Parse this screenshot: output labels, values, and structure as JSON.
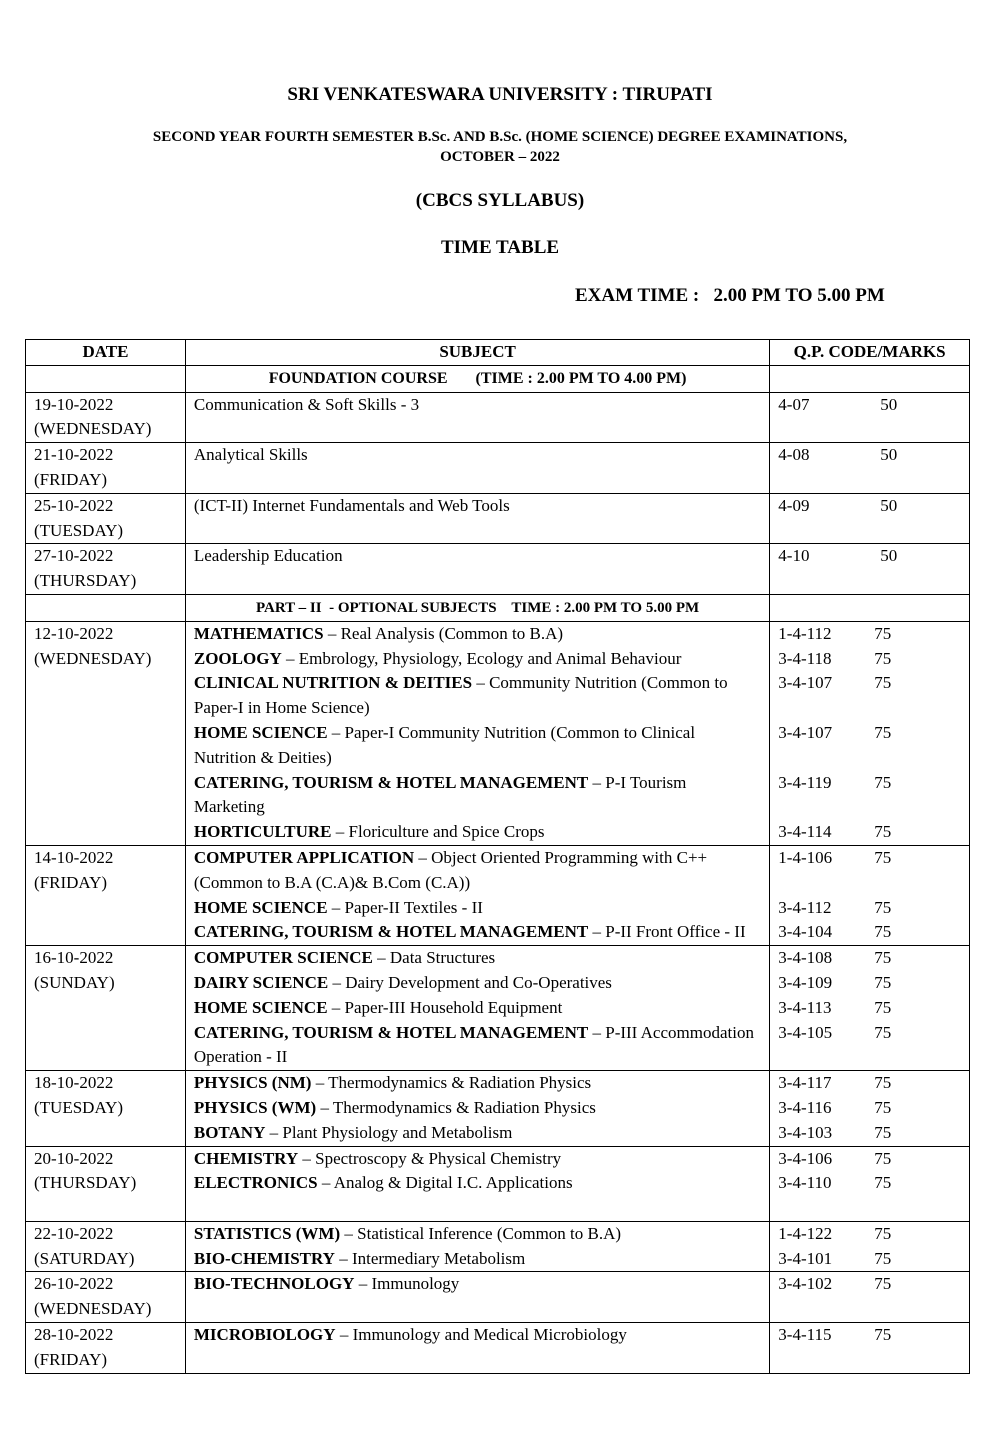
{
  "header": {
    "university": "SRI VENKATESWARA UNIVERSITY : TIRUPATI",
    "exam_line1": "SECOND YEAR FOURTH SEMESTER B.Sc. AND B.Sc. (HOME SCIENCE) DEGREE EXAMINATIONS,",
    "exam_line2": "OCTOBER – 2022",
    "syllabus": "(CBCS SYLLABUS)",
    "title": "TIME TABLE",
    "exam_time": "EXAM TIME :   2.00 PM TO 5.00 PM"
  },
  "table": {
    "columns": [
      "DATE",
      "SUBJECT",
      "Q.P. CODE/MARKS"
    ],
    "sections": [
      {
        "label": "FOUNDATION COURSE       (TIME : 2.00 PM TO 4.00 PM)",
        "groups": [
          {
            "date": "19-10-2022",
            "day": "(WEDNESDAY)",
            "entries": [
              {
                "bold": "",
                "text": "Communication & Soft Skills - 3",
                "code": "4-07",
                "marks": "50"
              }
            ]
          },
          {
            "date": "21-10-2022",
            "day": "(FRIDAY)",
            "entries": [
              {
                "bold": "",
                "text": "Analytical Skills",
                "code": "4-08",
                "marks": "50"
              }
            ]
          },
          {
            "date": "25-10-2022",
            "day": "(TUESDAY)",
            "entries": [
              {
                "bold": "",
                "text": "(ICT-II) Internet Fundamentals and Web Tools",
                "code": "4-09",
                "marks": "50"
              }
            ]
          },
          {
            "date": "27-10-2022",
            "day": "(THURSDAY)",
            "entries": [
              {
                "bold": "",
                "text": "Leadership Education",
                "code": "4-10",
                "marks": "50"
              }
            ]
          }
        ]
      },
      {
        "label": "PART – II  - OPTIONAL SUBJECTS    TIME : 2.00 PM TO 5.00 PM",
        "groups": [
          {
            "date": "12-10-2022",
            "day": "(WEDNESDAY)",
            "entries": [
              {
                "bold": "MATHEMATICS",
                "text": " – Real Analysis    (Common to B.A)",
                "code": "1-4-112",
                "marks": "75"
              },
              {
                "bold": "ZOOLOGY",
                "text": " – Embrology, Physiology, Ecology and Animal Behaviour",
                "code": "3-4-118",
                "marks": "75"
              },
              {
                "bold": "CLINICAL NUTRITION & DEITIES",
                "text": " – Community Nutrition (Common to Paper-I in Home Science)",
                "code": "3-4-107",
                "marks": "75"
              },
              {
                "bold": "HOME SCIENCE",
                "text": " – Paper-I Community Nutrition  (Common to Clinical Nutrition & Deities)",
                "code": "3-4-107",
                "marks": "75"
              },
              {
                "bold": "CATERING, TOURISM & HOTEL MANAGEMENT",
                "text": " – P-I Tourism Marketing",
                "code": "3-4-119",
                "marks": "75"
              },
              {
                "bold": "HORTICULTURE",
                "text": " – Floriculture and Spice Crops",
                "code": "3-4-114",
                "marks": "75"
              }
            ]
          },
          {
            "date": "14-10-2022",
            "day": "(FRIDAY)",
            "entries": [
              {
                "bold": "COMPUTER APPLICATION",
                "text": " – Object Oriented Programming with C++  (Common to B.A (C.A)& B.Com (C.A))",
                "code": "1-4-106",
                "marks": "75"
              },
              {
                "bold": "HOME SCIENCE",
                "text": " – Paper-II Textiles - II",
                "code": "3-4-112",
                "marks": "75"
              },
              {
                "bold": "CATERING, TOURISM & HOTEL MANAGEMENT",
                "text": " – P-II Front Office - II",
                "code": "3-4-104",
                "marks": "75"
              }
            ]
          },
          {
            "date": "16-10-2022",
            "day": "(SUNDAY)",
            "entries": [
              {
                "bold": "COMPUTER SCIENCE",
                "text": " – Data Structures",
                "code": "3-4-108",
                "marks": "75"
              },
              {
                "bold": "DAIRY SCIENCE",
                "text": " – Dairy Development and Co-Operatives",
                "code": "3-4-109",
                "marks": "75"
              },
              {
                "bold": "HOME SCIENCE",
                "text": " –  Paper-III Household Equipment",
                "code": "3-4-113",
                "marks": "75"
              },
              {
                "bold": "CATERING, TOURISM & HOTEL MANAGEMENT",
                "text": " – P-III Accommodation Operation - II",
                "code": "3-4-105",
                "marks": "75"
              }
            ]
          },
          {
            "date": "18-10-2022",
            "day": "(TUESDAY)",
            "entries": [
              {
                "bold": "PHYSICS (NM)",
                "text": " – Thermodynamics & Radiation Physics",
                "code": "3-4-117",
                "marks": "75"
              },
              {
                "bold": "PHYSICS (WM)",
                "text": " – Thermodynamics & Radiation Physics",
                "code": "3-4-116",
                "marks": "75"
              },
              {
                "bold": "BOTANY",
                "text": " – Plant Physiology and Metabolism",
                "code": "3-4-103",
                "marks": "75"
              }
            ]
          },
          {
            "date": "20-10-2022",
            "day": "(THURSDAY)",
            "entries": [
              {
                "bold": "CHEMISTRY",
                "text": " – Spectroscopy & Physical Chemistry",
                "code": "3-4-106",
                "marks": "75"
              },
              {
                "bold": "ELECTRONICS",
                "text": " – Analog & Digital I.C. Applications",
                "code": "3-4-110",
                "marks": "75"
              }
            ]
          },
          {
            "date": "22-10-2022",
            "day": "(SATURDAY)",
            "entries": [
              {
                "bold": "STATISTICS (WM)",
                "text": " – Statistical Inference   (Common to B.A)",
                "code": "1-4-122",
                "marks": "75"
              },
              {
                "bold": "BIO-CHEMISTRY",
                "text": " – Intermediary Metabolism",
                "code": "3-4-101",
                "marks": "75"
              }
            ]
          },
          {
            "date": "26-10-2022",
            "day": "(WEDNESDAY)",
            "entries": [
              {
                "bold": "BIO-TECHNOLOGY",
                "text": " – Immunology",
                "code": "3-4-102",
                "marks": "75"
              }
            ]
          },
          {
            "date": "28-10-2022",
            "day": "(FRIDAY)",
            "entries": [
              {
                "bold": "MICROBIOLOGY",
                "text": " – Immunology and Medical Microbiology",
                "code": "3-4-115",
                "marks": "75"
              }
            ]
          }
        ]
      }
    ]
  }
}
